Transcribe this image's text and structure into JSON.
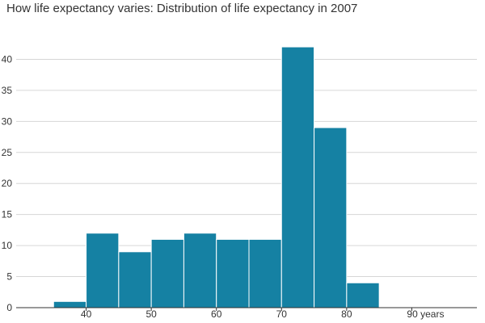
{
  "chart_data": {
    "type": "bar",
    "title": "How life expectancy varies: Distribution of life expectancy in 2007",
    "xlabel": "",
    "ylabel": "",
    "bins": [
      {
        "start": 35,
        "end": 40,
        "value": 1
      },
      {
        "start": 40,
        "end": 45,
        "value": 12
      },
      {
        "start": 45,
        "end": 50,
        "value": 9
      },
      {
        "start": 50,
        "end": 55,
        "value": 11
      },
      {
        "start": 55,
        "end": 60,
        "value": 12
      },
      {
        "start": 60,
        "end": 65,
        "value": 11
      },
      {
        "start": 65,
        "end": 70,
        "value": 11
      },
      {
        "start": 70,
        "end": 75,
        "value": 42
      },
      {
        "start": 75,
        "end": 80,
        "value": 29
      },
      {
        "start": 80,
        "end": 85,
        "value": 4
      }
    ],
    "xlim": [
      30,
      100
    ],
    "ylim": [
      0,
      45
    ],
    "x_ticks": [
      {
        "value": 40,
        "label": "40"
      },
      {
        "value": 50,
        "label": "50"
      },
      {
        "value": 60,
        "label": "60"
      },
      {
        "value": 70,
        "label": "70"
      },
      {
        "value": 80,
        "label": "80"
      },
      {
        "value": 90,
        "label": "90 years"
      }
    ],
    "y_ticks": [
      {
        "value": 0,
        "label": "0"
      },
      {
        "value": 5,
        "label": "5"
      },
      {
        "value": 10,
        "label": "10"
      },
      {
        "value": 15,
        "label": "15"
      },
      {
        "value": 20,
        "label": "20"
      },
      {
        "value": 25,
        "label": "25"
      },
      {
        "value": 30,
        "label": "30"
      },
      {
        "value": 35,
        "label": "35"
      },
      {
        "value": 40,
        "label": "40"
      }
    ],
    "grid": true,
    "bar_color": "#1581a3",
    "grid_color": "#d6d6d6",
    "axis_color": "#333333"
  }
}
